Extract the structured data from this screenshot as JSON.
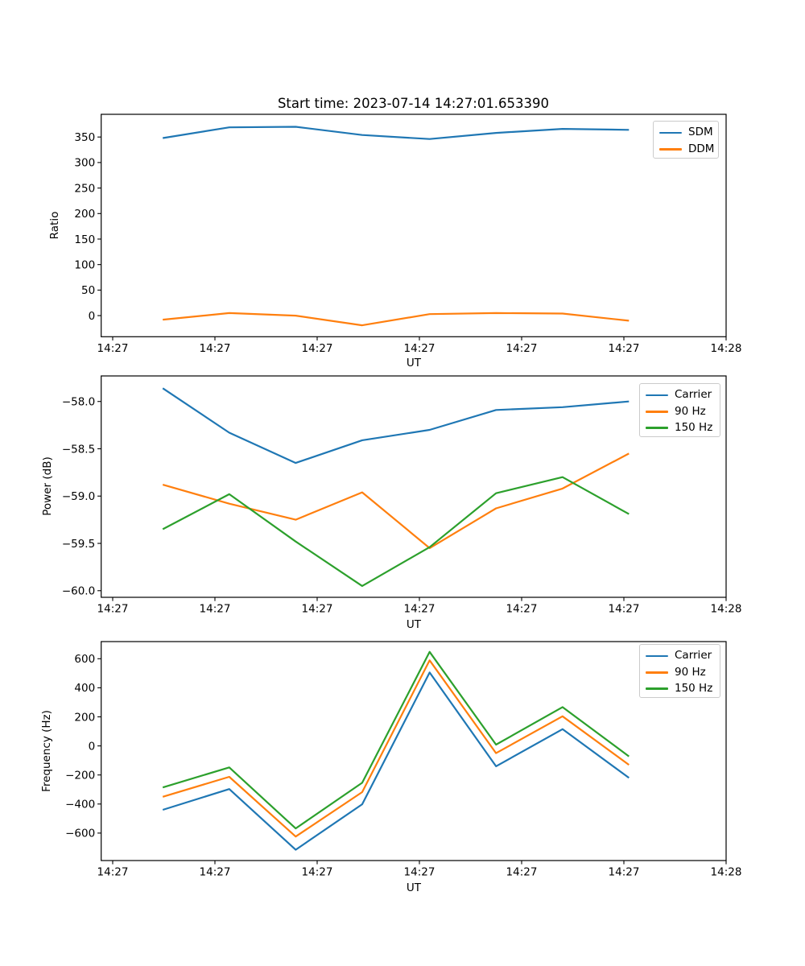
{
  "figure": {
    "title": "Start time: 2023-07-14 14:27:01.653390",
    "accent_colors": {
      "blue": "#1f77b4",
      "orange": "#ff7f0e",
      "green": "#2ca02c"
    }
  },
  "chart_data": [
    {
      "type": "line",
      "title": "Start time: 2023-07-14 14:27:01.653390",
      "xlabel": "UT",
      "ylabel": "Ratio",
      "x_seconds": [
        4.9,
        11.4,
        17.9,
        24.4,
        31.0,
        37.5,
        44.0,
        50.5
      ],
      "xlim": [
        -1.125,
        60
      ],
      "ylim": [
        -41.4,
        394.5
      ],
      "xticks": [
        0,
        10,
        20,
        30,
        40,
        50,
        60
      ],
      "xtick_labels": [
        "14:27",
        "14:27",
        "14:27",
        "14:27",
        "14:27",
        "14:27",
        "14:28"
      ],
      "yticks": [
        0,
        50,
        100,
        150,
        200,
        250,
        300,
        350
      ],
      "ytick_labels": [
        "0",
        "50",
        "100",
        "150",
        "200",
        "250",
        "300",
        "350"
      ],
      "legend_position": "upper right",
      "grid": false,
      "series": [
        {
          "name": "SDM",
          "color": "#1f77b4",
          "values": [
            348,
            369,
            370,
            354,
            346,
            358,
            366,
            364
          ]
        },
        {
          "name": "DDM",
          "color": "#ff7f0e",
          "values": [
            -8,
            5,
            0,
            -19,
            3,
            5,
            4,
            -10
          ]
        }
      ]
    },
    {
      "type": "line",
      "xlabel": "UT",
      "ylabel": "Power (dB)",
      "x_seconds": [
        4.9,
        11.4,
        17.9,
        24.4,
        31.0,
        37.5,
        44.0,
        50.5
      ],
      "xlim": [
        -1.125,
        60
      ],
      "ylim": [
        -60.07,
        -57.73
      ],
      "xticks": [
        0,
        10,
        20,
        30,
        40,
        50,
        60
      ],
      "xtick_labels": [
        "14:27",
        "14:27",
        "14:27",
        "14:27",
        "14:27",
        "14:27",
        "14:28"
      ],
      "yticks": [
        -60.0,
        -59.5,
        -59.0,
        -58.5,
        -58.0
      ],
      "ytick_labels": [
        "−60.0",
        "−59.5",
        "−59.0",
        "−58.5",
        "−58.0"
      ],
      "legend_position": "upper right",
      "grid": false,
      "series": [
        {
          "name": "Carrier",
          "color": "#1f77b4",
          "values": [
            -57.86,
            -58.33,
            -58.65,
            -58.41,
            -58.3,
            -58.09,
            -58.06,
            -58.0
          ]
        },
        {
          "name": "90 Hz",
          "color": "#ff7f0e",
          "values": [
            -58.88,
            -59.08,
            -59.25,
            -58.96,
            -59.55,
            -59.13,
            -58.92,
            -58.55
          ]
        },
        {
          "name": "150 Hz",
          "color": "#2ca02c",
          "values": [
            -59.35,
            -58.98,
            -59.48,
            -59.95,
            -59.54,
            -58.97,
            -58.8,
            -59.19
          ]
        }
      ]
    },
    {
      "type": "line",
      "xlabel": "UT",
      "ylabel": "Frequency (Hz)",
      "x_seconds": [
        4.9,
        11.4,
        17.9,
        24.4,
        31.0,
        37.5,
        44.0,
        50.5
      ],
      "xlim": [
        -1.125,
        60
      ],
      "ylim": [
        -789,
        718
      ],
      "xticks": [
        0,
        10,
        20,
        30,
        40,
        50,
        60
      ],
      "xtick_labels": [
        "14:27",
        "14:27",
        "14:27",
        "14:27",
        "14:27",
        "14:27",
        "14:28"
      ],
      "yticks": [
        -600,
        -400,
        -200,
        0,
        200,
        400,
        600
      ],
      "ytick_labels": [
        "−600",
        "−400",
        "−200",
        "0",
        "200",
        "400",
        "600"
      ],
      "legend_position": "upper right",
      "grid": false,
      "series": [
        {
          "name": "Carrier",
          "color": "#1f77b4",
          "values": [
            -440,
            -297,
            -715,
            -402,
            505,
            -140,
            115,
            -220
          ]
        },
        {
          "name": "90 Hz",
          "color": "#ff7f0e",
          "values": [
            -350,
            -213,
            -624,
            -318,
            589,
            -50,
            204,
            -130
          ]
        },
        {
          "name": "150 Hz",
          "color": "#2ca02c",
          "values": [
            -286,
            -148,
            -568,
            -254,
            647,
            9,
            267,
            -72
          ]
        }
      ]
    }
  ]
}
